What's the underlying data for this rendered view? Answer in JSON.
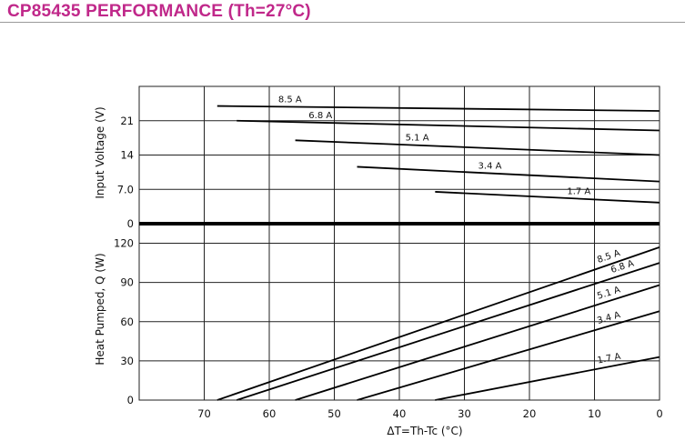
{
  "page": {
    "title": "CP85435 PERFORMANCE (Th=27°C)",
    "title_color": "#c0288a",
    "rule_color": "#9a9a9a"
  },
  "chart_data": [
    {
      "type": "line",
      "name": "voltage-panel",
      "xlabel": "",
      "ylabel": "Input Voltage (V)",
      "xlim": [
        80,
        0
      ],
      "ylim": [
        0,
        28
      ],
      "x_ticks": [
        70,
        60,
        50,
        40,
        30,
        20,
        10,
        0
      ],
      "y_ticks": [
        0,
        7.0,
        14,
        21
      ],
      "y_tick_labels": [
        "0",
        "7.0",
        "14",
        "21"
      ],
      "grid": true,
      "series": [
        {
          "name": "8.5 A",
          "x": [
            68,
            0
          ],
          "y": [
            24.0,
            23.0
          ]
        },
        {
          "name": "6.8 A",
          "x": [
            65,
            0
          ],
          "y": [
            21.0,
            19.0
          ]
        },
        {
          "name": "5.1 A",
          "x": [
            56,
            0
          ],
          "y": [
            17.0,
            14.0
          ]
        },
        {
          "name": "3.4 A",
          "x": [
            46.5,
            0
          ],
          "y": [
            11.6,
            8.6
          ]
        },
        {
          "name": "1.7 A",
          "x": [
            34.5,
            0
          ],
          "y": [
            6.5,
            4.3
          ]
        }
      ]
    },
    {
      "type": "line",
      "name": "heat-panel",
      "xlabel": "ΔT=Th-Tc (°C)",
      "ylabel": "Heat Pumped, Q (W)",
      "xlim": [
        80,
        0
      ],
      "ylim": [
        0,
        135
      ],
      "x_ticks": [
        70,
        60,
        50,
        40,
        30,
        20,
        10,
        0
      ],
      "x_tick_labels": [
        "70",
        "60",
        "50",
        "40",
        "30",
        "20",
        "10",
        "0"
      ],
      "y_ticks": [
        0,
        30,
        60,
        90,
        120
      ],
      "y_tick_labels": [
        "0",
        "30",
        "60",
        "90",
        "120"
      ],
      "grid": true,
      "series": [
        {
          "name": "8.5 A",
          "x": [
            68,
            0
          ],
          "y": [
            0,
            117
          ]
        },
        {
          "name": "6.8 A",
          "x": [
            65,
            0
          ],
          "y": [
            0,
            105
          ]
        },
        {
          "name": "5.1 A",
          "x": [
            56,
            0
          ],
          "y": [
            0,
            88
          ]
        },
        {
          "name": "3.4 A",
          "x": [
            46.5,
            0
          ],
          "y": [
            0,
            68
          ]
        },
        {
          "name": "1.7 A",
          "x": [
            34.5,
            0
          ],
          "y": [
            0,
            33
          ]
        }
      ]
    }
  ]
}
